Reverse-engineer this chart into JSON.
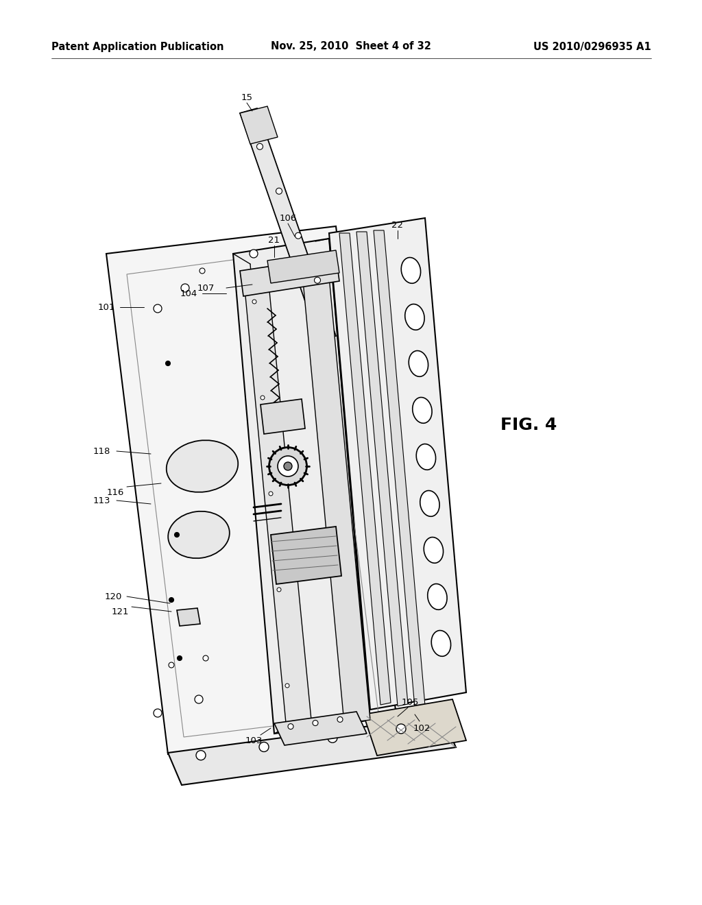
{
  "background_color": "#ffffff",
  "header_left": "Patent Application Publication",
  "header_center": "Nov. 25, 2010  Sheet 4 of 32",
  "header_right": "US 2010/0296935 A1",
  "figure_label": "FIG. 4",
  "header_font_size": 10.5,
  "label_font_size": 9.5,
  "fig_label_font_size": 18,
  "line_color": "#000000",
  "text_color": "#000000"
}
